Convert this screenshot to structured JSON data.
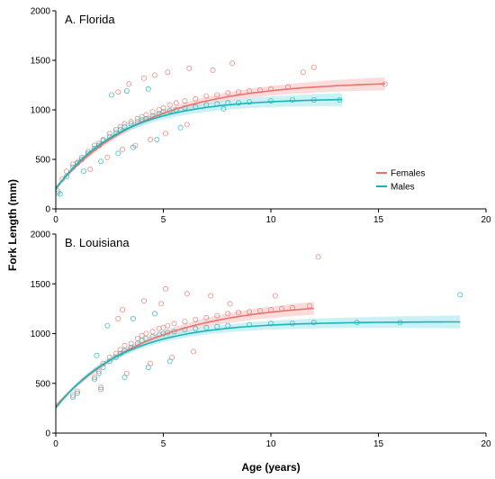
{
  "ylabel": "Fork Length (mm)",
  "xlabel": "Age (years)",
  "colors": {
    "females": "#e8736b",
    "males": "#1bb5b9",
    "females_band": "#f6bfc1",
    "males_band": "#9fe6ea",
    "axis": "#000000"
  },
  "legend": {
    "placement": "right-middle of panel A",
    "items": [
      {
        "label": "Females",
        "color_key": "females"
      },
      {
        "label": "Males",
        "color_key": "males"
      }
    ]
  },
  "chart_data": [
    {
      "type": "scatter",
      "title": "A. Florida",
      "xlabel": "",
      "ylabel": "Fork Length (mm)",
      "xlim": [
        0,
        20
      ],
      "ylim": [
        0,
        2000
      ],
      "x_ticks": [
        0,
        5,
        10,
        15,
        20
      ],
      "y_ticks": [
        0,
        500,
        1000,
        1500,
        2000
      ],
      "grid": false,
      "series": [
        {
          "name": "Females",
          "color_key": "females",
          "curve": {
            "Linf": 1290,
            "K": 0.24,
            "t0": -0.75,
            "x_range": [
              0,
              15.3
            ]
          },
          "points": [
            [
              0.1,
              180
            ],
            [
              0.3,
              300
            ],
            [
              0.5,
              380
            ],
            [
              0.8,
              450
            ],
            [
              1.0,
              470
            ],
            [
              1.2,
              520
            ],
            [
              1.5,
              580
            ],
            [
              1.8,
              640
            ],
            [
              2.0,
              660
            ],
            [
              2.2,
              700
            ],
            [
              2.5,
              760
            ],
            [
              2.8,
              800
            ],
            [
              3.0,
              830
            ],
            [
              3.2,
              860
            ],
            [
              3.5,
              880
            ],
            [
              3.8,
              910
            ],
            [
              4.0,
              930
            ],
            [
              4.2,
              950
            ],
            [
              4.5,
              980
            ],
            [
              4.8,
              1000
            ],
            [
              5.0,
              1020
            ],
            [
              5.3,
              1050
            ],
            [
              5.6,
              1070
            ],
            [
              6.0,
              1090
            ],
            [
              6.5,
              1110
            ],
            [
              7.0,
              1140
            ],
            [
              7.5,
              1150
            ],
            [
              8.0,
              1170
            ],
            [
              8.5,
              1180
            ],
            [
              9.0,
              1190
            ],
            [
              9.5,
              1200
            ],
            [
              10.0,
              1210
            ],
            [
              10.8,
              1230
            ],
            [
              11.5,
              1380
            ],
            [
              12.0,
              1430
            ],
            [
              2.9,
              1180
            ],
            [
              3.4,
              1260
            ],
            [
              4.1,
              1320
            ],
            [
              4.6,
              1350
            ],
            [
              5.2,
              1380
            ],
            [
              6.2,
              1420
            ],
            [
              7.3,
              1400
            ],
            [
              8.2,
              1470
            ],
            [
              2.4,
              520
            ],
            [
              3.1,
              600
            ],
            [
              3.7,
              640
            ],
            [
              4.4,
              700
            ],
            [
              5.1,
              760
            ],
            [
              6.1,
              850
            ],
            [
              1.6,
              400
            ],
            [
              15.3,
              1260
            ]
          ]
        },
        {
          "name": "Males",
          "color_key": "males",
          "curve": {
            "Linf": 1115,
            "K": 0.33,
            "t0": -0.6,
            "x_range": [
              0,
              13.3
            ]
          },
          "points": [
            [
              0.1,
              160
            ],
            [
              0.2,
              150
            ],
            [
              0.5,
              330
            ],
            [
              0.8,
              420
            ],
            [
              1.0,
              460
            ],
            [
              1.2,
              500
            ],
            [
              1.5,
              560
            ],
            [
              1.8,
              610
            ],
            [
              2.0,
              640
            ],
            [
              2.2,
              690
            ],
            [
              2.5,
              730
            ],
            [
              2.8,
              770
            ],
            [
              3.0,
              800
            ],
            [
              3.2,
              830
            ],
            [
              3.5,
              860
            ],
            [
              3.8,
              880
            ],
            [
              4.0,
              900
            ],
            [
              4.2,
              910
            ],
            [
              4.5,
              940
            ],
            [
              4.8,
              960
            ],
            [
              5.0,
              980
            ],
            [
              5.3,
              990
            ],
            [
              5.6,
              1000
            ],
            [
              6.0,
              1020
            ],
            [
              6.5,
              1030
            ],
            [
              7.0,
              1050
            ],
            [
              7.5,
              1060
            ],
            [
              8.0,
              1070
            ],
            [
              8.5,
              1070
            ],
            [
              9.0,
              1080
            ],
            [
              10.0,
              1090
            ],
            [
              11.0,
              1100
            ],
            [
              12.0,
              1100
            ],
            [
              13.2,
              1100
            ],
            [
              2.6,
              1150
            ],
            [
              3.3,
              1190
            ],
            [
              4.3,
              1210
            ],
            [
              2.1,
              480
            ],
            [
              2.9,
              560
            ],
            [
              3.6,
              620
            ],
            [
              4.7,
              700
            ],
            [
              1.3,
              380
            ],
            [
              5.8,
              820
            ],
            [
              7.8,
              1010
            ]
          ]
        }
      ]
    },
    {
      "type": "scatter",
      "title": "B. Louisiana",
      "xlabel": "Age (years)",
      "ylabel": "",
      "xlim": [
        0,
        20
      ],
      "ylim": [
        0,
        2000
      ],
      "x_ticks": [
        0,
        5,
        10,
        15,
        20
      ],
      "y_ticks": [
        0,
        500,
        1000,
        1500,
        2000
      ],
      "grid": false,
      "series": [
        {
          "name": "Females",
          "color_key": "females",
          "curve": {
            "Linf": 1320,
            "K": 0.23,
            "t0": -1.0,
            "x_range": [
              0,
              12
            ]
          },
          "points": [
            [
              0.8,
              380
            ],
            [
              1.0,
              420
            ],
            [
              1.8,
              560
            ],
            [
              2.0,
              620
            ],
            [
              2.2,
              700
            ],
            [
              2.5,
              760
            ],
            [
              2.8,
              800
            ],
            [
              3.0,
              840
            ],
            [
              3.2,
              880
            ],
            [
              3.5,
              900
            ],
            [
              3.8,
              950
            ],
            [
              4.0,
              980
            ],
            [
              4.2,
              1000
            ],
            [
              4.5,
              1020
            ],
            [
              4.8,
              1050
            ],
            [
              5.0,
              1060
            ],
            [
              5.2,
              1080
            ],
            [
              5.5,
              1100
            ],
            [
              6.0,
              1120
            ],
            [
              6.5,
              1140
            ],
            [
              7.0,
              1160
            ],
            [
              7.5,
              1180
            ],
            [
              8.0,
              1200
            ],
            [
              8.5,
              1210
            ],
            [
              9.0,
              1220
            ],
            [
              9.5,
              1230
            ],
            [
              10.0,
              1240
            ],
            [
              10.5,
              1250
            ],
            [
              11.0,
              1260
            ],
            [
              11.8,
              1280
            ],
            [
              12.2,
              1770
            ],
            [
              3.1,
              1240
            ],
            [
              4.1,
              1330
            ],
            [
              5.1,
              1450
            ],
            [
              6.1,
              1400
            ],
            [
              7.2,
              1380
            ],
            [
              8.1,
              1300
            ],
            [
              2.1,
              460
            ],
            [
              3.3,
              600
            ],
            [
              4.4,
              700
            ],
            [
              5.4,
              760
            ],
            [
              6.4,
              820
            ],
            [
              2.9,
              1150
            ],
            [
              4.9,
              1300
            ],
            [
              10.2,
              1380
            ]
          ]
        },
        {
          "name": "Males",
          "color_key": "males",
          "curve": {
            "Linf": 1120,
            "K": 0.32,
            "t0": -0.8,
            "x_range": [
              0,
              18.8
            ]
          },
          "points": [
            [
              0.8,
              360
            ],
            [
              1.0,
              400
            ],
            [
              1.8,
              540
            ],
            [
              2.0,
              600
            ],
            [
              2.2,
              660
            ],
            [
              2.5,
              720
            ],
            [
              2.8,
              760
            ],
            [
              3.0,
              800
            ],
            [
              3.2,
              830
            ],
            [
              3.5,
              860
            ],
            [
              3.8,
              900
            ],
            [
              4.0,
              930
            ],
            [
              4.2,
              950
            ],
            [
              4.5,
              970
            ],
            [
              4.8,
              990
            ],
            [
              5.0,
              1000
            ],
            [
              5.2,
              1010
            ],
            [
              5.5,
              1020
            ],
            [
              6.0,
              1040
            ],
            [
              6.5,
              1050
            ],
            [
              7.0,
              1060
            ],
            [
              7.5,
              1070
            ],
            [
              8.0,
              1080
            ],
            [
              9.0,
              1090
            ],
            [
              10.0,
              1100
            ],
            [
              11.0,
              1100
            ],
            [
              12.0,
              1110
            ],
            [
              14.0,
              1110
            ],
            [
              16.0,
              1110
            ],
            [
              18.8,
              1390
            ],
            [
              2.4,
              1080
            ],
            [
              3.6,
              1150
            ],
            [
              4.6,
              1200
            ],
            [
              2.1,
              440
            ],
            [
              3.2,
              560
            ],
            [
              4.3,
              660
            ],
            [
              5.3,
              720
            ],
            [
              1.9,
              780
            ]
          ]
        }
      ]
    }
  ]
}
